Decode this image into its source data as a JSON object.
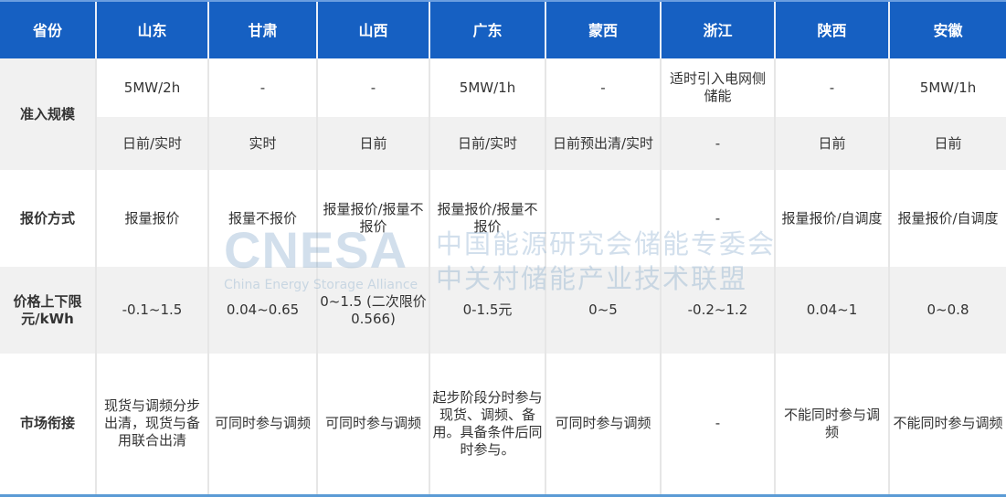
{
  "header": [
    "省份",
    "山东",
    "甘肃",
    "山西",
    "广东",
    "蒙西",
    "浙江",
    "陕西",
    "安徽"
  ],
  "rows": {
    "admission": {
      "label": "准入规模",
      "line1": [
        "5MW/2h",
        "-",
        "-",
        "5MW/1h",
        "-",
        "适时引入电网侧储能",
        "-",
        "5MW/1h"
      ],
      "line2": [
        "日前/实时",
        "实时",
        "日前",
        "日前/实时",
        "日前预出清/实时",
        "-",
        "日前",
        "日前"
      ]
    },
    "bidding": {
      "label": "报价方式",
      "values": [
        "报量报价",
        "报量不报价",
        "报量报价/报量不报价",
        "报量报价/报量不报价",
        "",
        "-",
        "报量报价/自调度",
        "报量报价/自调度"
      ]
    },
    "price": {
      "label": "价格上下限元/kWh",
      "values": [
        "-0.1~1.5",
        "0.04~0.65",
        "0~1.5 (二次限价0.566)",
        "0-1.5元",
        "0~5",
        "-0.2~1.2",
        "0.04~1",
        "0~0.8"
      ]
    },
    "market": {
      "label": "市场衔接",
      "values": [
        "现货与调频分步出清，现货与备用联合出清",
        "可同时参与调频",
        "可同时参与调频",
        "起步阶段分时参与现货、调频、备用。具备条件后同时参与。",
        "可同时参与调频",
        "-",
        "不能同时参与调频",
        "不能同时参与调频"
      ]
    }
  },
  "watermark": {
    "logo": "CNESA",
    "subtitle": "China Energy Storage Alliance",
    "cn_line1": "中国能源研究会储能专委会",
    "cn_line2": "中关村储能产业技术联盟"
  },
  "colors": {
    "header_bg": "#1660c2",
    "row_gray": "#f1f1f1",
    "bottom_border": "#5b9bd5"
  }
}
